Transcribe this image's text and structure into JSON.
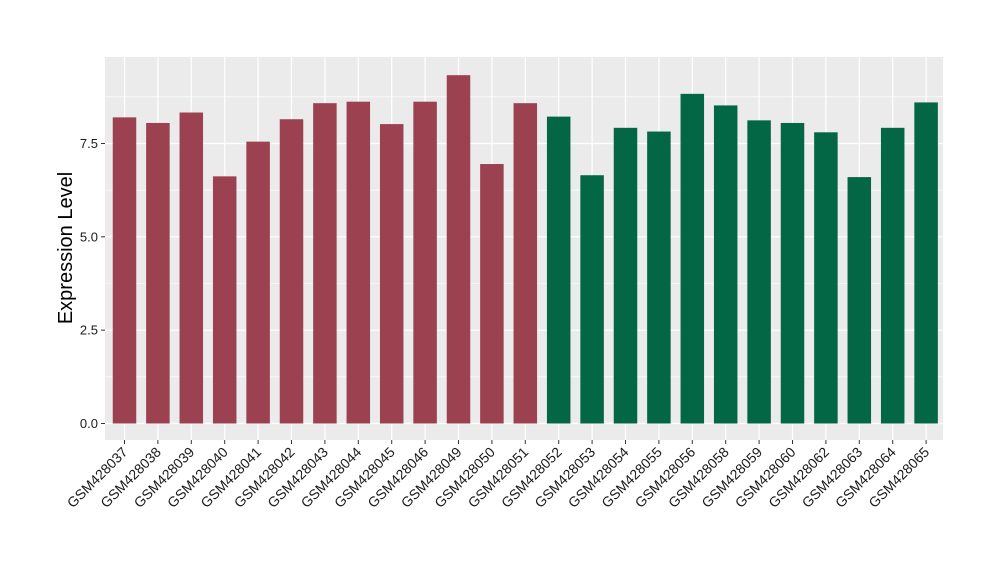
{
  "chart_data": {
    "type": "bar",
    "title": "",
    "xlabel": "",
    "ylabel": "Expression Level",
    "ylim": [
      0,
      9.6
    ],
    "yticks": [
      0.0,
      2.5,
      5.0,
      7.5
    ],
    "ytick_labels": [
      "0.0",
      "2.5",
      "5.0",
      "7.5"
    ],
    "grid": true,
    "categories": [
      "GSM428037",
      "GSM428038",
      "GSM428039",
      "GSM428040",
      "GSM428041",
      "GSM428042",
      "GSM428043",
      "GSM428044",
      "GSM428045",
      "GSM428046",
      "GSM428049",
      "GSM428050",
      "GSM428051",
      "GSM428052",
      "GSM428053",
      "GSM428054",
      "GSM428055",
      "GSM428056",
      "GSM428058",
      "GSM428059",
      "GSM428060",
      "GSM428062",
      "GSM428063",
      "GSM428064",
      "GSM428065"
    ],
    "values": [
      8.2,
      8.05,
      8.33,
      6.62,
      7.55,
      8.15,
      8.58,
      8.62,
      8.02,
      8.62,
      9.33,
      6.95,
      8.58,
      8.22,
      6.65,
      7.92,
      7.82,
      8.83,
      8.52,
      8.12,
      8.05,
      7.8,
      6.6,
      7.92,
      8.6
    ],
    "groups": [
      "a",
      "a",
      "a",
      "a",
      "a",
      "a",
      "a",
      "a",
      "a",
      "a",
      "a",
      "a",
      "a",
      "b",
      "b",
      "b",
      "b",
      "b",
      "b",
      "b",
      "b",
      "b",
      "b",
      "b",
      "b"
    ],
    "group_colors": {
      "a": "#9b4150",
      "b": "#036645"
    },
    "panel_background": "#ebebeb",
    "grid_color": "#ffffff"
  }
}
